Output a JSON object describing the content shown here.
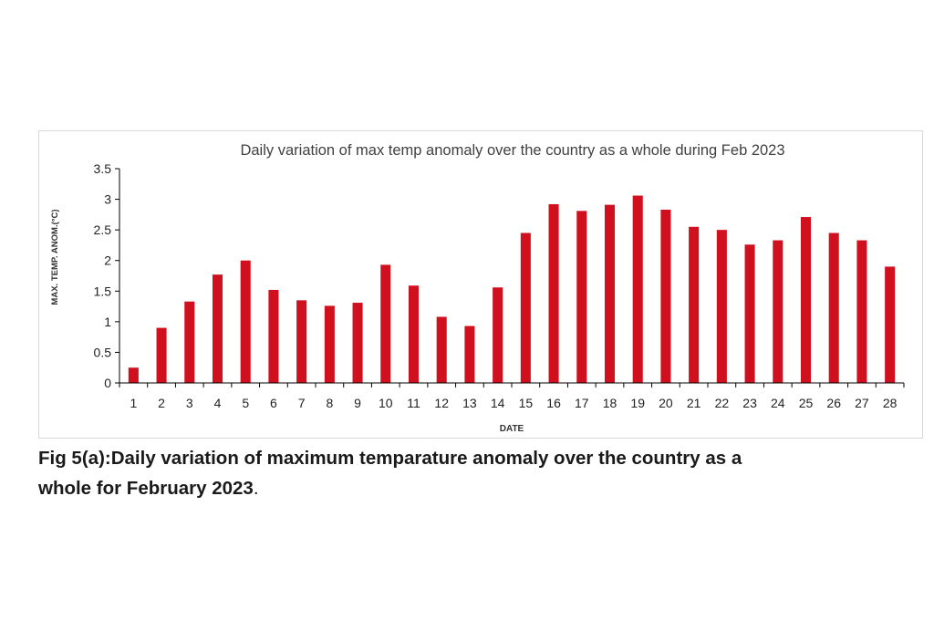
{
  "chart_data": {
    "type": "bar",
    "title": "Daily variation of max temp anomaly over the country as a whole during Feb 2023",
    "xlabel": "DATE",
    "ylabel": "MAX. TEMP. ANOM.(°C)",
    "categories": [
      "1",
      "2",
      "3",
      "4",
      "5",
      "6",
      "7",
      "8",
      "9",
      "10",
      "11",
      "12",
      "13",
      "14",
      "15",
      "16",
      "17",
      "18",
      "19",
      "20",
      "21",
      "22",
      "23",
      "24",
      "25",
      "26",
      "27",
      "28"
    ],
    "values": [
      0.25,
      0.9,
      1.33,
      1.77,
      2.0,
      1.52,
      1.35,
      1.26,
      1.31,
      1.93,
      1.59,
      1.08,
      0.93,
      1.56,
      2.45,
      2.92,
      2.81,
      2.91,
      3.06,
      2.83,
      2.55,
      2.5,
      2.26,
      2.33,
      2.71,
      2.45,
      2.33,
      1.9
    ],
    "ylim": [
      0,
      3.5
    ],
    "yticks": [
      "0",
      "0.5",
      "1",
      "1.5",
      "2",
      "2.5",
      "3",
      "3.5"
    ],
    "bar_color": "#d0101e",
    "grid": false,
    "legend": "none"
  },
  "caption": {
    "line1": "Fig 5(a):Daily variation of maximum temparature anomaly over the country as a",
    "line2": "whole for February 2023",
    "line2_end": "."
  }
}
